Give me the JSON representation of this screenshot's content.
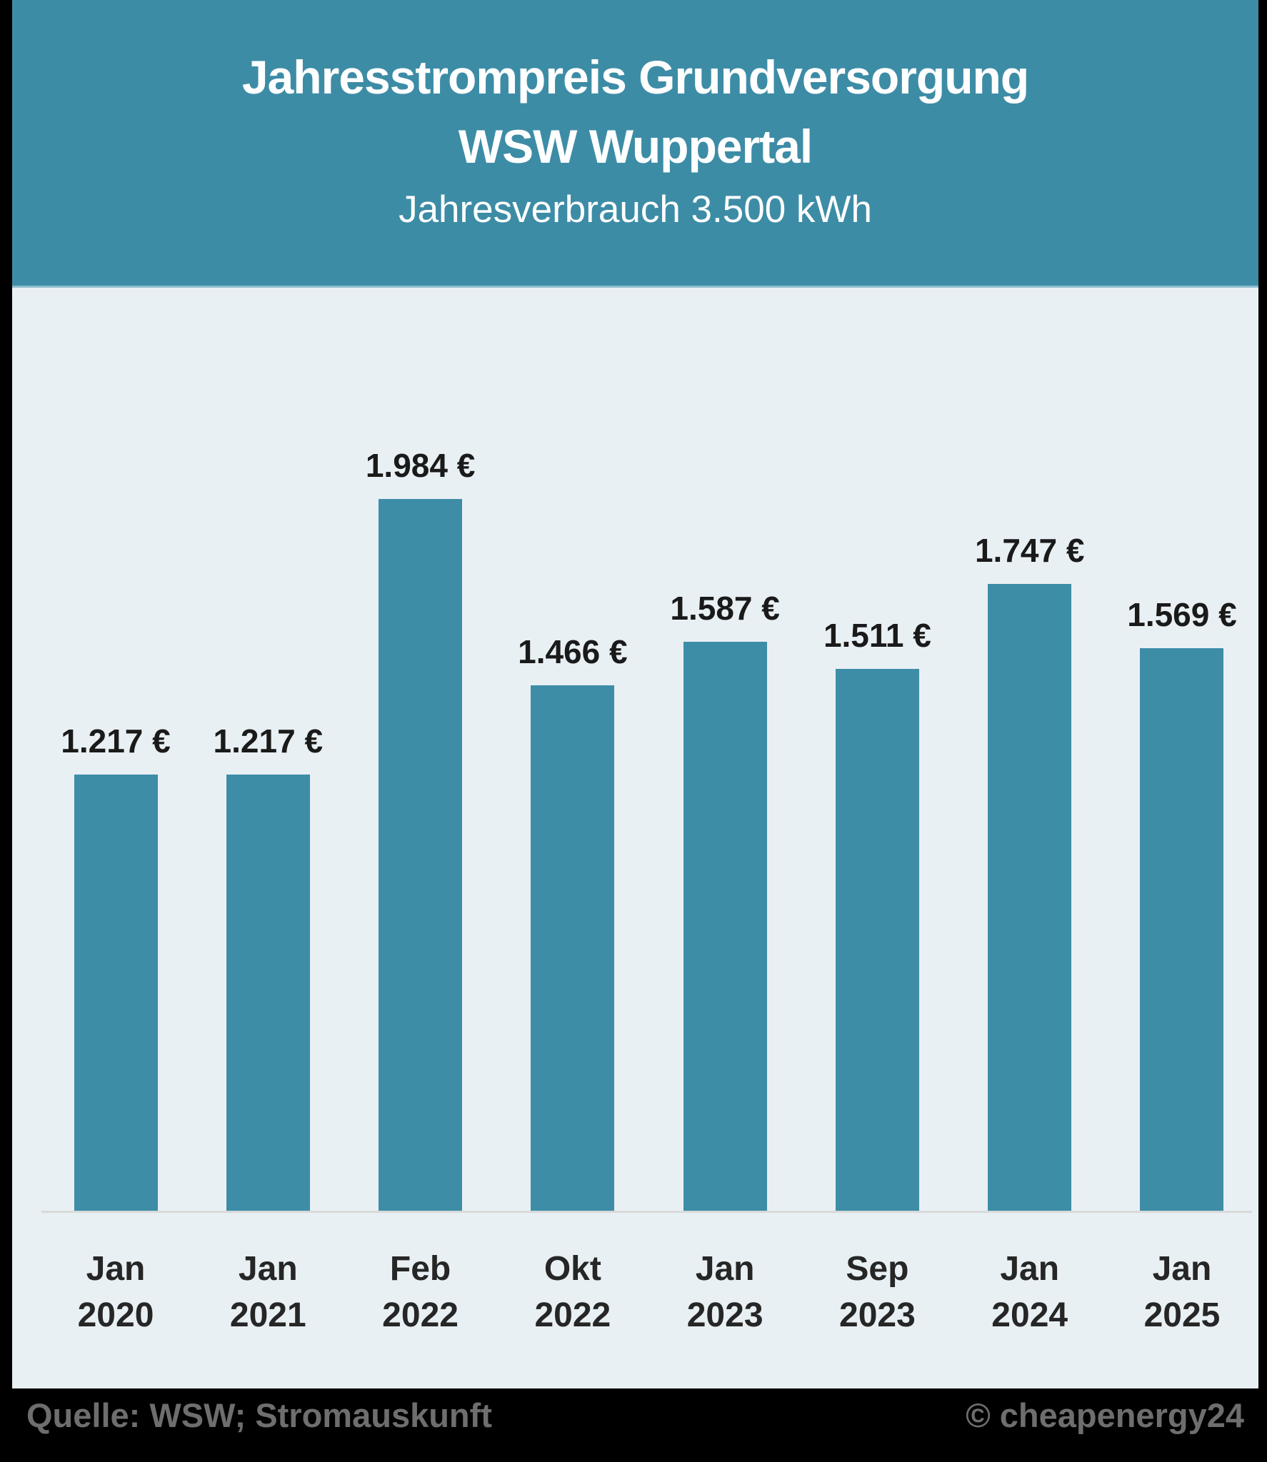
{
  "header": {
    "title_line1": "Jahresstrompreis Grundversorgung",
    "title_line2": "WSW Wuppertal",
    "subtitle": "Jahresverbrauch 3.500 kWh"
  },
  "footer": {
    "source": "Quelle: WSW; Stromauskunft",
    "copyright": "© cheapenergy24"
  },
  "colors": {
    "canvas_bg": "#000000",
    "panel_bg": "#e9f0f4",
    "header_bg": "#3d8ca6",
    "bar": "#3d8da7",
    "axis_line": "#d9d9d9",
    "title_text": "#ffffff",
    "value_text": "#1a1a1a",
    "tick_text": "#262626",
    "footer_text": "#6e6e6e"
  },
  "chart_data": {
    "type": "bar",
    "title": "Jahresstrompreis Grundversorgung WSW Wuppertal",
    "subtitle": "Jahresverbrauch 3.500 kWh",
    "unit": "EUR/Jahr",
    "categories": [
      "Jan 2020",
      "Jan 2021",
      "Feb 2022",
      "Okt 2022",
      "Jan 2023",
      "Sep 2023",
      "Jan 2024",
      "Jan 2025"
    ],
    "tick_lines": [
      [
        "Jan",
        "2020"
      ],
      [
        "Jan",
        "2021"
      ],
      [
        "Feb",
        "2022"
      ],
      [
        "Okt",
        "2022"
      ],
      [
        "Jan",
        "2023"
      ],
      [
        "Sep",
        "2023"
      ],
      [
        "Jan",
        "2024"
      ],
      [
        "Jan",
        "2025"
      ]
    ],
    "values": [
      1217,
      1217,
      1984,
      1466,
      1587,
      1511,
      1747,
      1569
    ],
    "value_labels": [
      "1.217 €",
      "1.217 €",
      "1.984 €",
      "1.466 €",
      "1.587 €",
      "1.511 €",
      "1.747 €",
      "1.569 €"
    ],
    "ylim": [
      0,
      2100
    ],
    "xlabel": "",
    "ylabel": "",
    "grid": false,
    "legend": false,
    "y_axis_visible": false
  }
}
